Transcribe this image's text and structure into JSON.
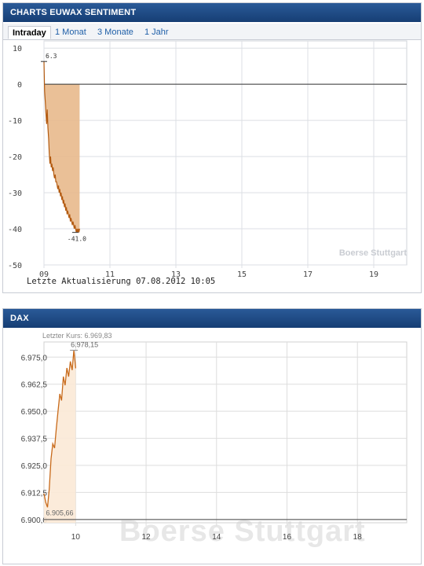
{
  "top_panel": {
    "title": "CHARTS EUWAX SENTIMENT",
    "tabs": [
      {
        "label": "Intraday",
        "active": true
      },
      {
        "label": "1 Monat",
        "active": false
      },
      {
        "label": "3 Monate",
        "active": false
      },
      {
        "label": "1 Jahr",
        "active": false
      }
    ],
    "update_text": "Letzte Aktualisierung 07.08.2012 10:05",
    "watermark": "Boerse Stuttgart"
  },
  "bottom_panel": {
    "title": "DAX",
    "last_price_label": "Letzter Kurs: 6.969,83",
    "watermark": "Boerse Stuttgart"
  },
  "chart_data": [
    {
      "type": "area",
      "title": "CHARTS EUWAX SENTIMENT",
      "x_ticks": [
        "09",
        "11",
        "13",
        "15",
        "17",
        "19"
      ],
      "y_ticks": [
        "10",
        "0",
        "-10",
        "-20",
        "-30",
        "-40",
        "-50"
      ],
      "xlim": [
        9,
        20
      ],
      "ylim": [
        -50,
        12
      ],
      "grid": true,
      "reference_line": 0,
      "annotations": [
        {
          "label": "6.3",
          "x": 9.0,
          "y": 6.3
        },
        {
          "label": "-41.0",
          "x": 9.95,
          "y": -41.0
        }
      ],
      "series": [
        {
          "x": [
            9.0,
            9.02,
            9.04,
            9.06,
            9.08,
            9.1,
            9.12,
            9.14,
            9.16,
            9.18,
            9.2,
            9.22,
            9.24,
            9.26,
            9.28,
            9.3,
            9.32,
            9.34,
            9.36,
            9.38,
            9.4,
            9.42,
            9.44,
            9.46,
            9.48,
            9.5,
            9.52,
            9.54,
            9.56,
            9.58,
            9.6,
            9.62,
            9.64,
            9.66,
            9.68,
            9.7,
            9.72,
            9.74,
            9.76,
            9.78,
            9.8,
            9.82,
            9.84,
            9.86,
            9.88,
            9.9,
            9.92,
            9.94,
            9.96,
            9.98,
            10.0,
            10.02,
            10.04,
            10.06,
            10.08
          ],
          "values": [
            6.3,
            -2,
            -5,
            -8,
            -11,
            -7,
            -12,
            -15,
            -19,
            -22,
            -20,
            -23,
            -22,
            -24,
            -23,
            -25,
            -26,
            -25,
            -27,
            -27,
            -28,
            -29,
            -28,
            -30,
            -29,
            -31,
            -30,
            -32,
            -31,
            -33,
            -32,
            -34,
            -33,
            -35,
            -34,
            -36,
            -35,
            -36,
            -37,
            -36,
            -38,
            -37,
            -38,
            -39,
            -38,
            -39,
            -40,
            -39,
            -40,
            -41.0,
            -40,
            -41,
            -40,
            -41,
            -40
          ]
        }
      ]
    },
    {
      "type": "line",
      "title": "DAX",
      "x_ticks": [
        "10",
        "12",
        "14",
        "16",
        "18"
      ],
      "y_ticks": [
        "6.975,0",
        "6.962,5",
        "6.950,0",
        "6.937,5",
        "6.925,0",
        "6.912,5",
        "6.900,0"
      ],
      "xlim": [
        9.1,
        19.4
      ],
      "ylim": [
        6898.5,
        6982
      ],
      "grid": true,
      "annotations": [
        {
          "label": "6.978,15",
          "x": 9.95,
          "y": 6978.15
        },
        {
          "label": "6.905,66",
          "x": 9.2,
          "y": 6905.66
        }
      ],
      "series": [
        {
          "x": [
            9.1,
            9.15,
            9.2,
            9.25,
            9.3,
            9.35,
            9.4,
            9.45,
            9.5,
            9.55,
            9.6,
            9.65,
            9.7,
            9.75,
            9.8,
            9.85,
            9.9,
            9.95,
            10.0
          ],
          "values": [
            6912,
            6908,
            6905.66,
            6914,
            6928,
            6935,
            6933,
            6942,
            6950,
            6958,
            6955,
            6966,
            6962,
            6970,
            6966,
            6973,
            6969,
            6978.15,
            6969.83
          ]
        }
      ]
    }
  ]
}
